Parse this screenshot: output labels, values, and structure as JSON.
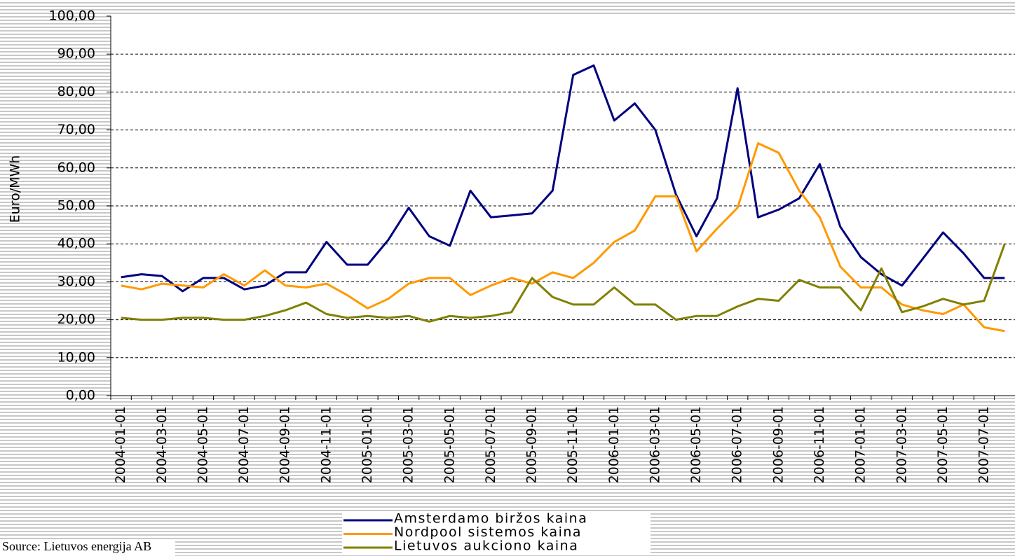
{
  "chart_data": {
    "type": "line",
    "y_label": "Euro/MWh",
    "source": "Source:  Lietuvos energija AB",
    "categories": [
      "2004-01-01",
      null,
      "2004-03-01",
      null,
      "2004-05-01",
      null,
      "2004-07-01",
      null,
      "2004-09-01",
      null,
      "2004-11-01",
      null,
      "2005-01-01",
      null,
      "2005-03-01",
      null,
      "2005-05-01",
      null,
      "2005-07-01",
      null,
      "2005-09-01",
      null,
      "2005-11-01",
      null,
      "2006-01-01",
      null,
      "2006-03-01",
      null,
      "2006-05-01",
      null,
      "2006-07-01",
      null,
      "2006-09-01",
      null,
      "2006-11-01",
      null,
      "2007-01-01",
      null,
      "2007-03-01",
      null,
      "2007-05-01",
      null,
      "2007-07-01",
      null
    ],
    "series": [
      {
        "name": "Amsterdamo biržos kaina",
        "color": "#00007f",
        "values": [
          31.2,
          32,
          31.5,
          27.5,
          31,
          31,
          28,
          29,
          32.5,
          32.5,
          40.5,
          34.5,
          34.5,
          41,
          49.5,
          42,
          39.5,
          54,
          47,
          47.5,
          48,
          54,
          84.5,
          87,
          72.5,
          77,
          70,
          53,
          42,
          52,
          81,
          47,
          49,
          52,
          61,
          44.5,
          36.5,
          32,
          29,
          36,
          43,
          37.5,
          31,
          31
        ]
      },
      {
        "name": "Nordpool sistemos kaina",
        "color": "#ff9900",
        "values": [
          29,
          28,
          29.5,
          29,
          28.5,
          32,
          29,
          33,
          29,
          28.5,
          29.5,
          26.5,
          23,
          25.5,
          29.5,
          31,
          31,
          26.5,
          29,
          31,
          29.5,
          32.5,
          31,
          35,
          40.5,
          43.5,
          52.5,
          52.5,
          38,
          44,
          49.5,
          66.5,
          64,
          54,
          47,
          34,
          28.5,
          28.5,
          24,
          22.5,
          21.5,
          24,
          18,
          17
        ]
      },
      {
        "name": "Lietuvos aukciono kaina",
        "color": "#808000",
        "values": [
          20.5,
          20,
          20,
          20.5,
          20.5,
          20,
          20,
          21,
          22.5,
          24.5,
          21.5,
          20.5,
          21,
          20.5,
          21,
          19.5,
          21,
          20.5,
          21,
          22,
          31,
          26,
          24,
          24,
          28.5,
          24,
          24,
          20,
          21,
          21,
          23.5,
          25.5,
          25,
          30.5,
          28.5,
          28.5,
          22.5,
          33.5,
          22,
          23.5,
          25.5,
          24,
          25,
          40
        ]
      }
    ],
    "ylim": [
      0,
      100
    ],
    "yticks": [
      {
        "value": 0,
        "label": "0,00"
      },
      {
        "value": 10,
        "label": "10,00"
      },
      {
        "value": 20,
        "label": "20,00"
      },
      {
        "value": 30,
        "label": "30,00"
      },
      {
        "value": 40,
        "label": "40,00"
      },
      {
        "value": 50,
        "label": "50,00"
      },
      {
        "value": 60,
        "label": "60,00"
      },
      {
        "value": 70,
        "label": "70,00"
      },
      {
        "value": 80,
        "label": "80,00"
      },
      {
        "value": 90,
        "label": "90,00"
      },
      {
        "value": 100,
        "label": "100,00"
      }
    ],
    "grid": true
  }
}
